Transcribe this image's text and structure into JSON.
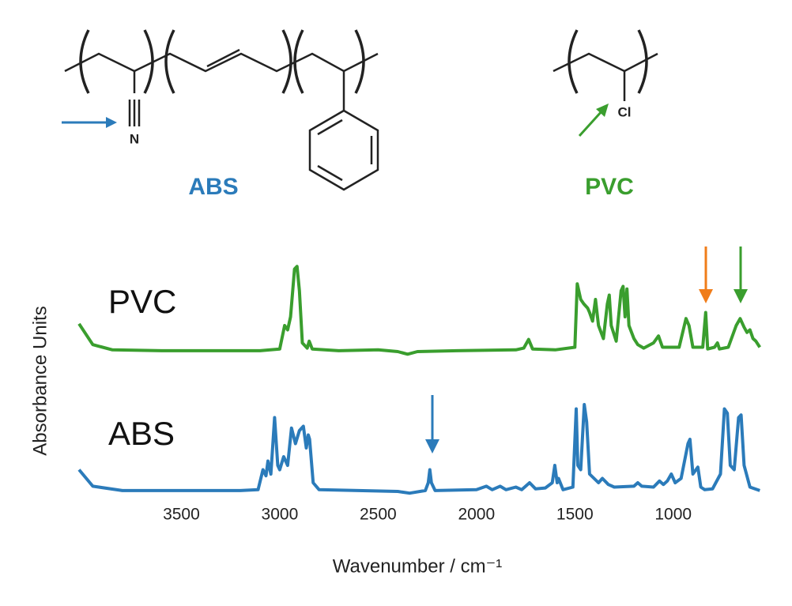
{
  "structures": [
    {
      "name": "ABS",
      "atoms": [
        "N"
      ]
    },
    {
      "name": "PVC",
      "atoms": [
        "Cl"
      ]
    }
  ],
  "chart_data": {
    "type": "line",
    "xlabel": "Wavenumber / cm⁻¹",
    "ylabel": "Absorbance Units",
    "xlim": [
      4020,
      545
    ],
    "xticks": [
      3500,
      3000,
      2500,
      2000,
      1500,
      1000
    ],
    "ylim": [
      0,
      1
    ],
    "series": [
      {
        "name": "PVC",
        "color": "#3a9e2e",
        "x": [
          4020,
          3950,
          3850,
          3600,
          3100,
          3000,
          2975,
          2960,
          2945,
          2925,
          2912,
          2900,
          2885,
          2860,
          2850,
          2835,
          2700,
          2500,
          2400,
          2350,
          2300,
          2100,
          1800,
          1760,
          1735,
          1715,
          1600,
          1500,
          1488,
          1470,
          1455,
          1435,
          1425,
          1410,
          1395,
          1380,
          1355,
          1335,
          1325,
          1315,
          1290,
          1265,
          1255,
          1245,
          1235,
          1225,
          1200,
          1180,
          1150,
          1100,
          1075,
          1055,
          970,
          935,
          920,
          900,
          850,
          835,
          825,
          790,
          775,
          765,
          720,
          680,
          660,
          640,
          625,
          610,
          595,
          580,
          560
        ],
        "values": [
          0.32,
          0.08,
          0.02,
          0.01,
          0.01,
          0.03,
          0.3,
          0.25,
          0.4,
          0.95,
          0.98,
          0.7,
          0.1,
          0.04,
          0.12,
          0.03,
          0.01,
          0.02,
          0.0,
          -0.03,
          0.0,
          0.01,
          0.02,
          0.04,
          0.14,
          0.03,
          0.02,
          0.05,
          0.78,
          0.6,
          0.55,
          0.5,
          0.45,
          0.35,
          0.6,
          0.3,
          0.15,
          0.55,
          0.65,
          0.3,
          0.12,
          0.7,
          0.75,
          0.4,
          0.72,
          0.3,
          0.15,
          0.08,
          0.04,
          0.1,
          0.18,
          0.05,
          0.05,
          0.38,
          0.3,
          0.05,
          0.05,
          0.45,
          0.03,
          0.05,
          0.1,
          0.03,
          0.05,
          0.3,
          0.38,
          0.28,
          0.22,
          0.25,
          0.15,
          0.12,
          0.05
        ]
      },
      {
        "name": "ABS",
        "color": "#2b7bba",
        "x": [
          4020,
          3950,
          3800,
          3200,
          3110,
          3085,
          3070,
          3060,
          3045,
          3026,
          3010,
          3000,
          2980,
          2960,
          2940,
          2920,
          2900,
          2880,
          2865,
          2855,
          2848,
          2830,
          2800,
          2400,
          2340,
          2260,
          2245,
          2237,
          2229,
          2210,
          2000,
          1950,
          1920,
          1880,
          1850,
          1800,
          1770,
          1730,
          1700,
          1650,
          1615,
          1602,
          1590,
          1583,
          1560,
          1510,
          1493,
          1485,
          1470,
          1452,
          1440,
          1425,
          1380,
          1360,
          1330,
          1300,
          1200,
          1180,
          1160,
          1100,
          1070,
          1050,
          1030,
          1010,
          990,
          960,
          925,
          915,
          900,
          875,
          860,
          840,
          800,
          760,
          740,
          725,
          710,
          690,
          668,
          655,
          640,
          610,
          560
        ],
        "values": [
          0.25,
          0.06,
          0.01,
          0.01,
          0.02,
          0.25,
          0.18,
          0.35,
          0.2,
          0.85,
          0.3,
          0.25,
          0.4,
          0.3,
          0.73,
          0.55,
          0.7,
          0.75,
          0.5,
          0.65,
          0.6,
          0.1,
          0.02,
          0.0,
          -0.02,
          0.01,
          0.1,
          0.25,
          0.1,
          0.01,
          0.02,
          0.06,
          0.02,
          0.06,
          0.02,
          0.05,
          0.02,
          0.1,
          0.03,
          0.04,
          0.1,
          0.3,
          0.1,
          0.15,
          0.02,
          0.05,
          0.95,
          0.3,
          0.25,
          1.0,
          0.8,
          0.2,
          0.1,
          0.15,
          0.08,
          0.05,
          0.06,
          0.1,
          0.06,
          0.05,
          0.12,
          0.08,
          0.12,
          0.2,
          0.1,
          0.15,
          0.55,
          0.6,
          0.2,
          0.28,
          0.05,
          0.02,
          0.03,
          0.2,
          0.95,
          0.9,
          0.3,
          0.25,
          0.85,
          0.88,
          0.3,
          0.05,
          0.01
        ]
      }
    ]
  }
}
